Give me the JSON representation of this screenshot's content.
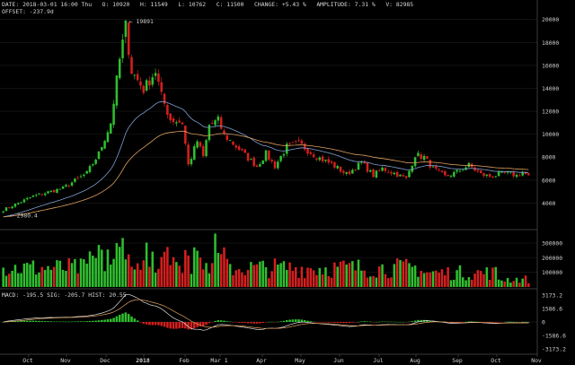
{
  "header": {
    "date_label": "DATE:",
    "date": "2018-03-01 16:00 Thu",
    "open_label": "O:",
    "open": "10920",
    "high_label": "H:",
    "high": "11549",
    "low_label": "L:",
    "low": "10762",
    "close_label": "C:",
    "close": "11500",
    "change_label": "CHANGE:",
    "change": "+5.43 %",
    "amplitude_label": "AMPLITUDE:",
    "amplitude": "7.31 %",
    "volume_label": "V:",
    "volume": "82985",
    "offset_label": "OFFSET:",
    "offset": "-237.9d"
  },
  "annotations": {
    "high_marker": "← 19891",
    "low_marker": "← 2980.4"
  },
  "macd_legend": {
    "macd_label": "MACD:",
    "macd": "-195.5",
    "sig_label": "SIG:",
    "sig": "-205.7",
    "hist_label": "HIST:",
    "hist": "20.55"
  },
  "colors": {
    "up": "#2fbf2f",
    "down": "#d61f1f",
    "ma_fast": "#7f9fd0",
    "ma_slow": "#e0a060",
    "background": "#000000"
  },
  "chart_data": [
    {
      "type": "candlestick",
      "panel": "price",
      "title": "",
      "y_ticks": [
        4000,
        6000,
        8000,
        10000,
        12000,
        14000,
        16000,
        18000,
        20000
      ],
      "ylim": [
        2000,
        20600
      ],
      "x_ticks": [
        "Oct",
        "Nov",
        "Dec",
        "2018",
        "Feb",
        "Mar 1",
        "Apr",
        "May",
        "Jun",
        "Jul",
        "Aug",
        "Sep",
        "Oct",
        "Nov"
      ],
      "anchors": [
        [
          0,
          3400
        ],
        [
          10,
          4600
        ],
        [
          20,
          5300
        ],
        [
          28,
          6600
        ],
        [
          32,
          8300
        ],
        [
          36,
          11000
        ],
        [
          39,
          16500
        ],
        [
          41,
          19400
        ],
        [
          43,
          15500
        ],
        [
          47,
          13900
        ],
        [
          51,
          15500
        ],
        [
          53,
          13300
        ],
        [
          56,
          11300
        ],
        [
          60,
          11000
        ],
        [
          62,
          7300
        ],
        [
          65,
          9400
        ],
        [
          67,
          8000
        ],
        [
          69,
          10800
        ],
        [
          72,
          11200
        ],
        [
          74,
          9900
        ],
        [
          79,
          8700
        ],
        [
          82,
          7900
        ],
        [
          85,
          7200
        ],
        [
          88,
          8300
        ],
        [
          91,
          7200
        ],
        [
          95,
          8900
        ],
        [
          99,
          9200
        ],
        [
          102,
          8600
        ],
        [
          106,
          7900
        ],
        [
          110,
          7400
        ],
        [
          115,
          6500
        ],
        [
          120,
          7500
        ],
        [
          124,
          6400
        ],
        [
          127,
          7000
        ],
        [
          131,
          6600
        ],
        [
          135,
          6100
        ],
        [
          138,
          8200
        ],
        [
          141,
          8000
        ],
        [
          144,
          7000
        ],
        [
          148,
          6300
        ],
        [
          152,
          6700
        ],
        [
          156,
          7300
        ],
        [
          160,
          6500
        ],
        [
          163,
          6300
        ],
        [
          166,
          6500
        ],
        [
          169,
          6600
        ],
        [
          172,
          6400
        ],
        [
          174,
          6700
        ],
        [
          176,
          6300
        ]
      ],
      "candle_count": 177,
      "moving_averages": [
        "fast",
        "slow"
      ]
    },
    {
      "type": "bar",
      "panel": "volume",
      "y_ticks": [
        100000,
        200000,
        300000
      ],
      "ylim": [
        0,
        380000
      ]
    },
    {
      "type": "macd",
      "panel": "macd",
      "y_ticks": [
        3173.2,
        1586.6,
        0,
        -1586.6,
        -3173.2
      ],
      "ylim": [
        -3500,
        3500
      ]
    }
  ]
}
